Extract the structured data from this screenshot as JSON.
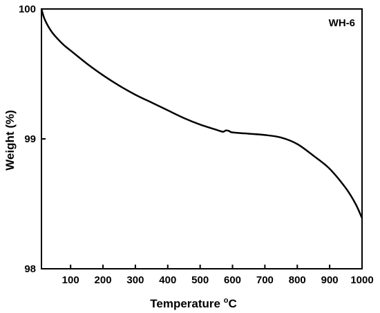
{
  "chart_data": {
    "type": "line",
    "title": "",
    "annotation": "WH-6",
    "xlabel": {
      "main": "Temperature ",
      "sup": "o",
      "unit": "C"
    },
    "ylabel": "Weight (%)",
    "xlim": [
      10,
      1000
    ],
    "ylim": [
      98,
      100
    ],
    "xticks": [
      100,
      200,
      300,
      400,
      500,
      600,
      700,
      800,
      900,
      1000
    ],
    "yticks": [
      98,
      99,
      100
    ],
    "grid": false,
    "series": [
      {
        "color": "#000000",
        "x": [
          10,
          20,
          40,
          60,
          80,
          100,
          150,
          200,
          250,
          300,
          350,
          400,
          450,
          500,
          550,
          570,
          580,
          590,
          600,
          650,
          700,
          750,
          800,
          850,
          900,
          950,
          980,
          1000
        ],
        "y": [
          100.0,
          99.92,
          99.83,
          99.77,
          99.72,
          99.68,
          99.58,
          99.49,
          99.41,
          99.34,
          99.28,
          99.22,
          99.16,
          99.11,
          99.07,
          99.055,
          99.065,
          99.06,
          99.05,
          99.04,
          99.03,
          99.01,
          98.96,
          98.87,
          98.77,
          98.62,
          98.5,
          98.39
        ]
      }
    ]
  }
}
